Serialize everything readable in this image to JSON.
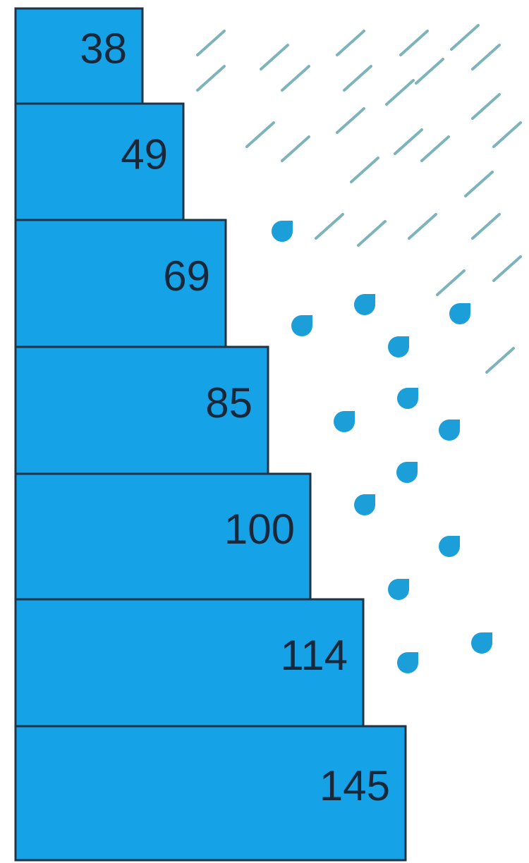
{
  "steps": [
    "38",
    "49",
    "69",
    "85",
    "100",
    "114",
    "145"
  ]
}
